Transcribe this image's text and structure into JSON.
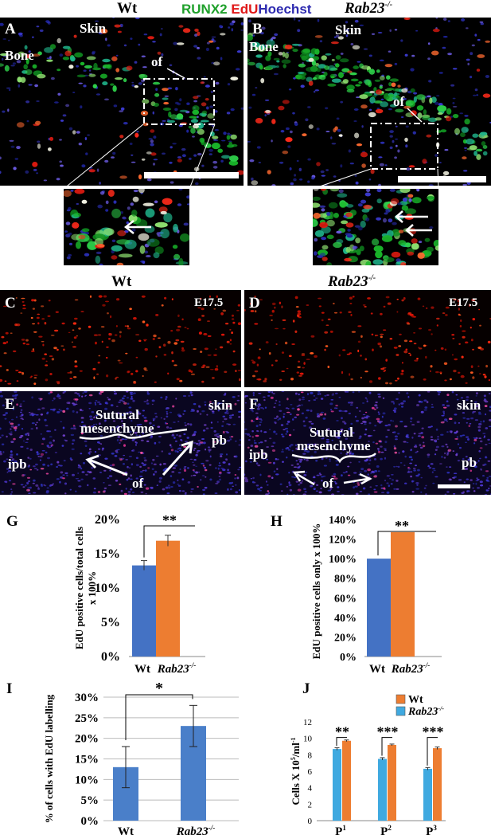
{
  "header": {
    "wt": "Wt",
    "runx2": "RUNX2",
    "edu": "EdU",
    "hoechst": "Hoechst",
    "rab23_prefix": "Rab23",
    "rab23_sup": "-/-"
  },
  "panels": {
    "A": {
      "letter": "A",
      "skin": "Skin",
      "bone": "Bone",
      "of": "of"
    },
    "B": {
      "letter": "B",
      "skin": "Skin",
      "bone": "Bone",
      "of": "of"
    },
    "row2": {
      "wt": "Wt",
      "rab": "Rab23",
      "rab_sup": "-/-"
    },
    "C": {
      "letter": "C",
      "stage": "E17.5"
    },
    "D": {
      "letter": "D",
      "stage": "E17.5"
    },
    "E": {
      "letter": "E",
      "skin": "skin",
      "sutural1": "Sutural",
      "sutural2": "mesenchyme",
      "pb": "pb",
      "ipb": "ipb",
      "of": "of"
    },
    "F": {
      "letter": "F",
      "skin": "skin",
      "sutural1": "Sutural",
      "sutural2": "mesenchyme",
      "pb": "pb",
      "ipb": "ipb",
      "of": "of"
    }
  },
  "colors": {
    "blue": "#4472c4",
    "orange": "#ed7d31",
    "barblue": "#4a7fc9",
    "lightblue": "#3fa9e0",
    "runx2": "#1fa02b",
    "edu": "#e01818",
    "hoechst": "#3a2fb0"
  },
  "chart_data": [
    {
      "id": "G",
      "letter": "G",
      "type": "bar",
      "ylabel_lines": [
        "EdU positive cells/total cells",
        "x 100%"
      ],
      "yticks": [
        "0%",
        "5%",
        "10%",
        "15%",
        "20%"
      ],
      "ylim": [
        0,
        20
      ],
      "categories": [
        "Wt",
        "Rab23"
      ],
      "cat_sup": [
        "",
        "-/-"
      ],
      "values": [
        13.3,
        16.9
      ],
      "errors": [
        0.7,
        0.8
      ],
      "significance": "**"
    },
    {
      "id": "H",
      "letter": "H",
      "type": "bar",
      "ylabel_lines": [
        "EdU positive cells only x 100%"
      ],
      "yticks": [
        "0%",
        "20%",
        "40%",
        "60%",
        "80%",
        "100%",
        "120%",
        "140%"
      ],
      "ylim": [
        0,
        140
      ],
      "categories": [
        "Wt",
        "Rab23"
      ],
      "cat_sup": [
        "",
        "-/-"
      ],
      "values": [
        100,
        127
      ],
      "errors": [
        0,
        0
      ],
      "significance": "**"
    },
    {
      "id": "I",
      "letter": "I",
      "type": "bar",
      "ylabel_lines": [
        "% of cells with EdU labelling"
      ],
      "yticks": [
        "0%",
        "5%",
        "10%",
        "15%",
        "20%",
        "25%",
        "30%"
      ],
      "ylim": [
        0,
        30
      ],
      "categories": [
        "Wt",
        "Rab23"
      ],
      "cat_sup": [
        "",
        "-/-"
      ],
      "values": [
        13,
        23
      ],
      "errors": [
        5,
        5
      ],
      "significance": "*"
    },
    {
      "id": "J",
      "letter": "J",
      "type": "bar",
      "ylabel": "Cells X 10",
      "ylabel_sup": "5",
      "ylabel_tail": "/ml",
      "ylabel_sup2": "-1",
      "yticks": [
        "0",
        "2",
        "4",
        "6",
        "8",
        "10",
        "12"
      ],
      "ylim": [
        0,
        12
      ],
      "categories": [
        "P",
        "P",
        "P"
      ],
      "cat_sup": [
        "1",
        "2",
        "3"
      ],
      "legend": [
        "Wt",
        "Rab23"
      ],
      "legend_sup": [
        "",
        "-/-"
      ],
      "series": [
        {
          "name": "Rab23",
          "values": [
            8.7,
            7.5,
            6.3
          ],
          "errors": [
            0.15,
            0.15,
            0.15
          ]
        },
        {
          "name": "Wt",
          "values": [
            9.7,
            9.2,
            8.8
          ],
          "errors": [
            0.1,
            0.1,
            0.15
          ]
        }
      ],
      "significance": [
        "**",
        "***",
        "***"
      ]
    }
  ]
}
